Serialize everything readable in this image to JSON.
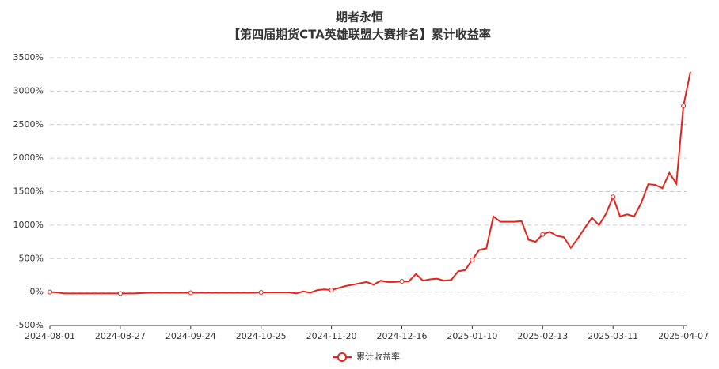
{
  "chart_data": {
    "type": "line",
    "title": "期者永恒",
    "subtitle": "【第四届期货CTA英雄联盟大赛排名】累计收益率",
    "categories": [
      "2024-08-01",
      null,
      null,
      null,
      null,
      null,
      null,
      null,
      null,
      null,
      "2024-08-27",
      null,
      null,
      null,
      null,
      null,
      null,
      null,
      null,
      null,
      "2024-09-24",
      null,
      null,
      null,
      null,
      null,
      null,
      null,
      null,
      null,
      "2024-10-25",
      null,
      null,
      null,
      null,
      null,
      null,
      null,
      null,
      null,
      "2024-11-20",
      null,
      null,
      null,
      null,
      null,
      null,
      null,
      null,
      null,
      "2024-12-16",
      null,
      null,
      null,
      null,
      null,
      null,
      null,
      null,
      null,
      "2025-01-10",
      null,
      null,
      null,
      null,
      null,
      null,
      null,
      null,
      null,
      "2025-02-13",
      null,
      null,
      null,
      null,
      null,
      null,
      null,
      null,
      null,
      "2025-03-11",
      null,
      null,
      null,
      null,
      null,
      null,
      null,
      null,
      null,
      "2025-04-07",
      null
    ],
    "series": [
      {
        "name": "累计收益率",
        "color": "#e8211a",
        "values": [
          0,
          -5,
          -20,
          -20,
          -20,
          -20,
          -20,
          -20,
          -20,
          -20,
          -20,
          -20,
          -20,
          -15,
          -10,
          -10,
          -10,
          -10,
          -10,
          -10,
          -10,
          -10,
          -10,
          -10,
          -10,
          -10,
          -10,
          -10,
          -10,
          -10,
          -5,
          -5,
          -5,
          -5,
          -5,
          -20,
          10,
          -10,
          30,
          40,
          30,
          60,
          90,
          110,
          130,
          150,
          110,
          170,
          150,
          150,
          160,
          160,
          270,
          170,
          190,
          200,
          170,
          180,
          310,
          330,
          480,
          630,
          650,
          1130,
          1050,
          1050,
          1050,
          1060,
          780,
          750,
          860,
          900,
          840,
          820,
          660,
          800,
          960,
          1110,
          1000,
          1170,
          1420,
          1130,
          1160,
          1130,
          1330,
          1610,
          1600,
          1550,
          1780,
          1620,
          2780,
          3290
        ]
      }
    ],
    "ylim": [
      -500,
      3500
    ],
    "yticks": [
      {
        "value": -500,
        "label": "-500%"
      },
      {
        "value": 0,
        "label": "0%"
      },
      {
        "value": 500,
        "label": "500%"
      },
      {
        "value": 1000,
        "label": "1000%"
      },
      {
        "value": 1500,
        "label": "1500%"
      },
      {
        "value": 2000,
        "label": "2000%"
      },
      {
        "value": 2500,
        "label": "2500%"
      },
      {
        "value": 3000,
        "label": "3000%"
      },
      {
        "value": 3500,
        "label": "3500%"
      }
    ],
    "grid": true
  }
}
